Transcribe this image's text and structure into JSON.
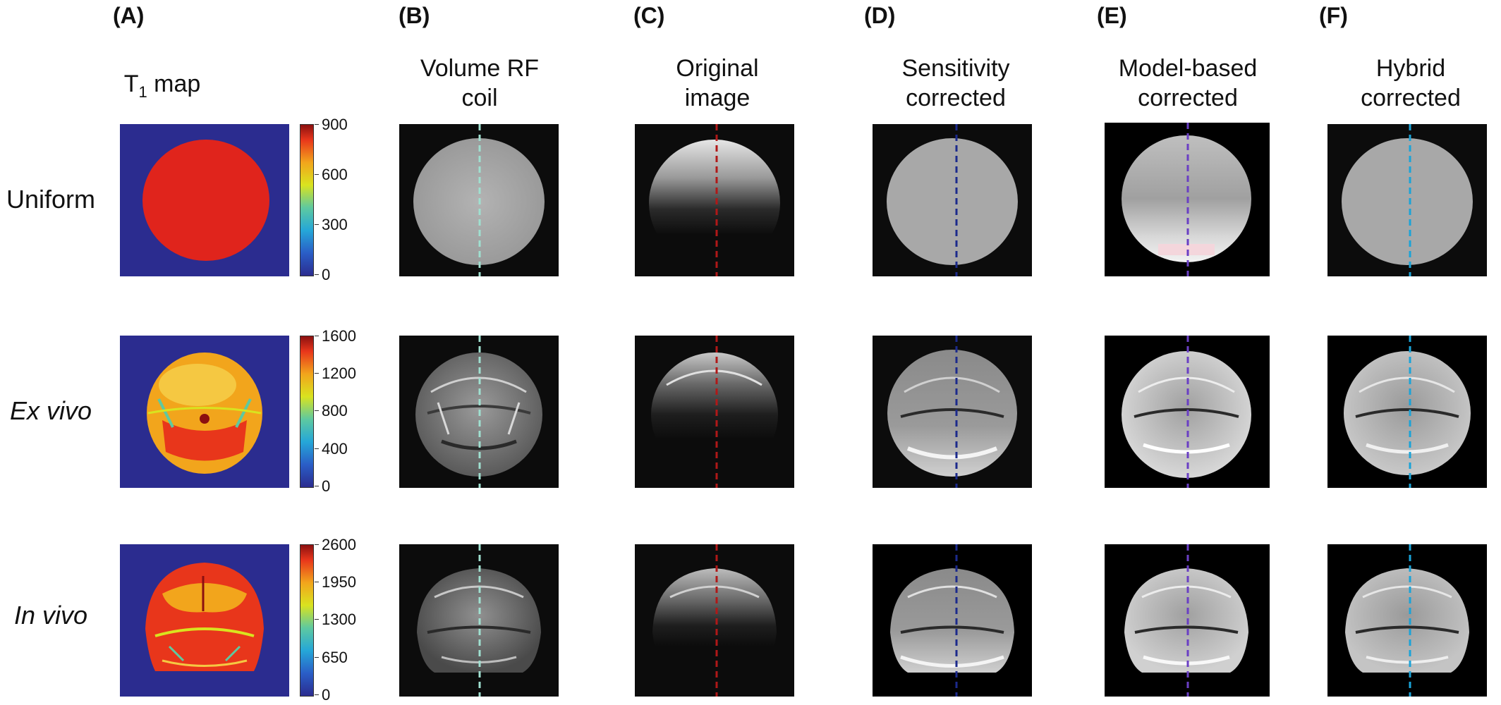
{
  "panels": {
    "A": {
      "letter": "(A)",
      "title_main": "T",
      "title_sub": "1",
      "title_rest": " map"
    },
    "B": {
      "letter": "(B)",
      "title": [
        "Volume RF",
        "coil"
      ],
      "dash_color": "#9fe0d0"
    },
    "C": {
      "letter": "(C)",
      "title": [
        "Original",
        "image"
      ],
      "dash_color": "#b01818"
    },
    "D": {
      "letter": "(D)",
      "title": [
        "Sensitivity",
        "corrected"
      ],
      "dash_color": "#1c2a8c"
    },
    "E": {
      "letter": "(E)",
      "title": [
        "Model-based",
        "corrected"
      ],
      "dash_color": "#6a3fc4"
    },
    "F": {
      "letter": "(F)",
      "title": [
        "Hybrid",
        "corrected"
      ],
      "dash_color": "#1aa3d8"
    }
  },
  "rows": [
    {
      "label": "Uniform",
      "italic": false,
      "colorbar_ticks": [
        "900",
        "600",
        "300",
        "0"
      ]
    },
    {
      "label": "Ex vivo",
      "italic": true,
      "colorbar_ticks": [
        "1600",
        "1200",
        "800",
        "400",
        "0"
      ]
    },
    {
      "label": "In vivo",
      "italic": true,
      "colorbar_ticks": [
        "2600",
        "1950",
        "1300",
        "650",
        "0"
      ]
    }
  ],
  "colors": {
    "t1_background": "#2b2c8f",
    "t1_uniform_fill": "#e0241c",
    "image_background": "#0c0c0c",
    "phantom_gray": "#a8a8a8"
  }
}
